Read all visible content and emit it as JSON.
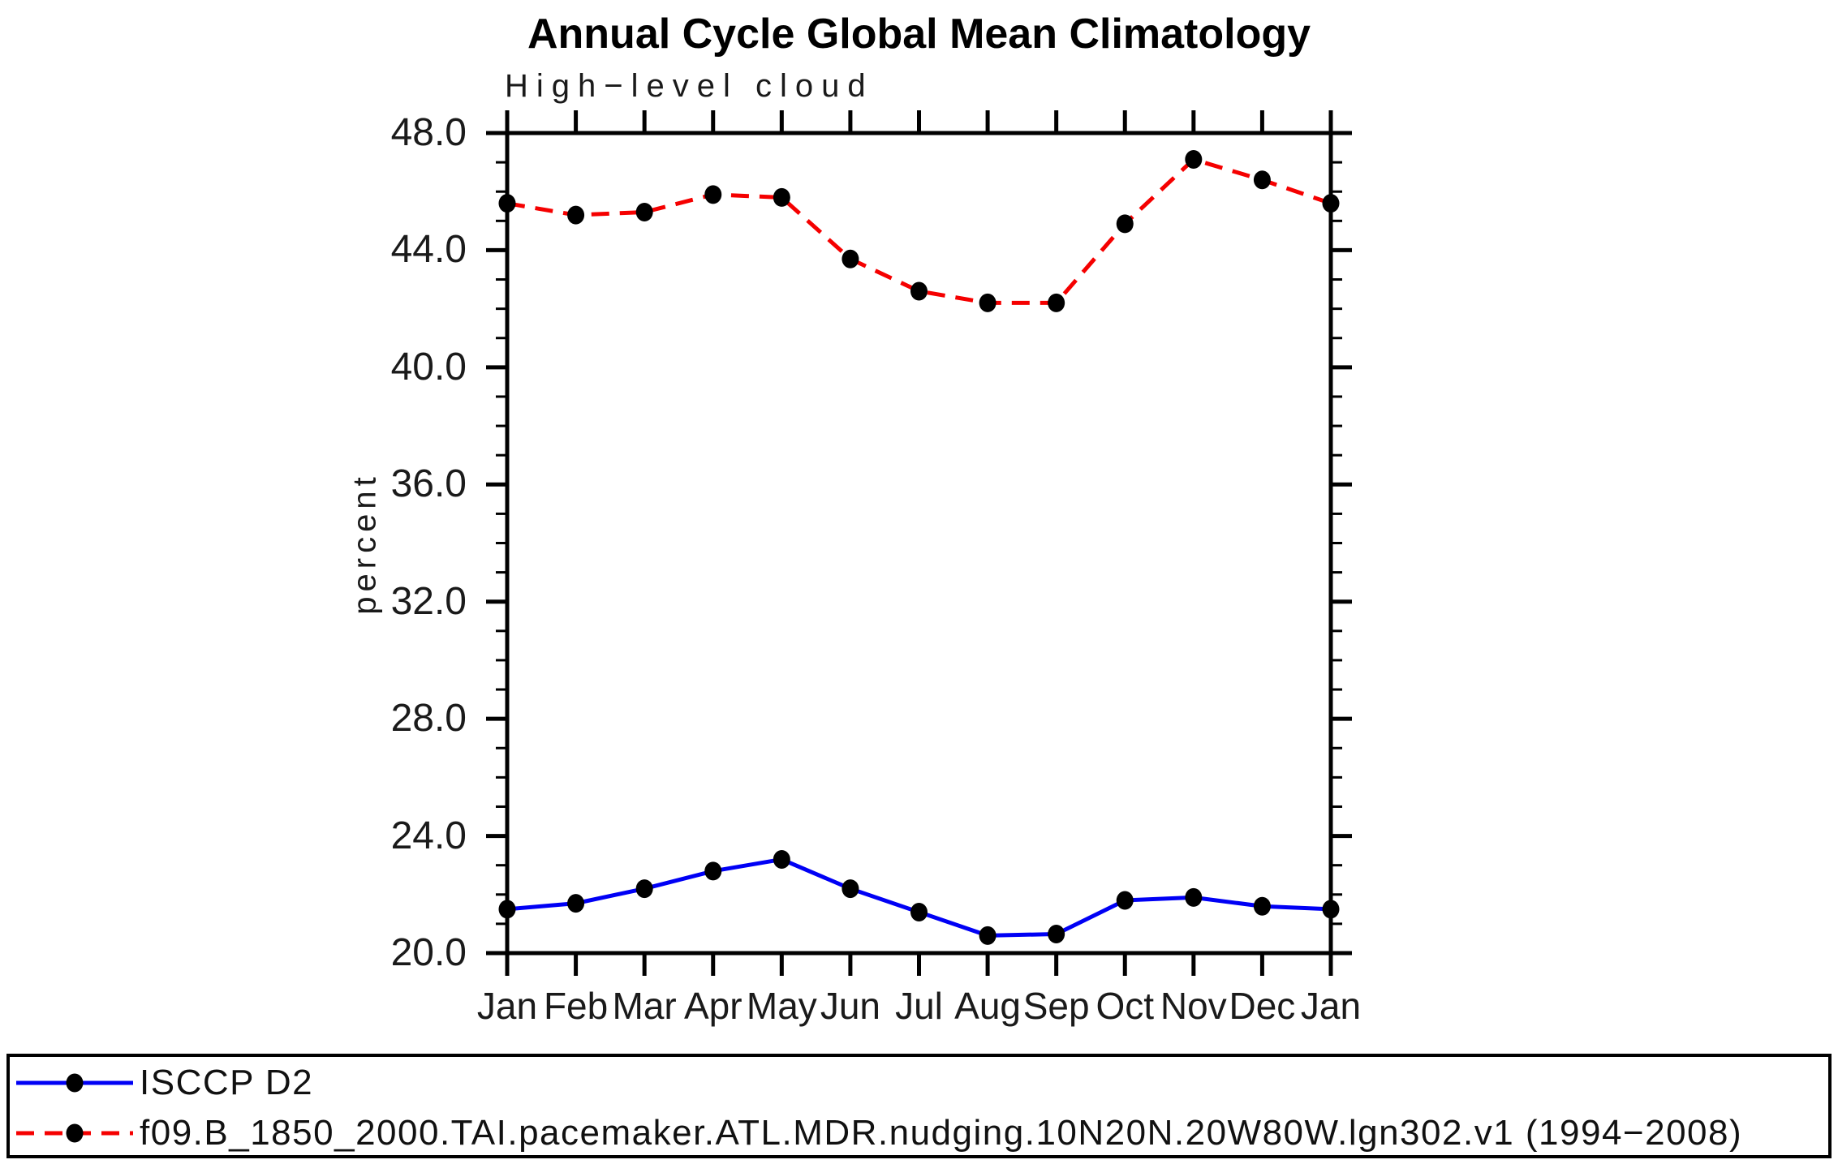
{
  "page": {
    "background": "#ffffff"
  },
  "chart_data": {
    "type": "line",
    "title": "Annual Cycle Global Mean Climatology",
    "subtitle": "High−level cloud",
    "ylabel": "percent",
    "xlabel": "",
    "categories": [
      "Jan",
      "Feb",
      "Mar",
      "Apr",
      "May",
      "Jun",
      "Jul",
      "Aug",
      "Sep",
      "Oct",
      "Nov",
      "Dec",
      "Jan"
    ],
    "ylim": [
      20.0,
      48.0
    ],
    "ytick_major_step": 4.0,
    "ytick_minor_step": 1.0,
    "ytick_labels": [
      "48.0",
      "44.0",
      "40.0",
      "36.0",
      "32.0",
      "28.0",
      "24.0",
      "20.0"
    ],
    "grid": false,
    "legend_position": "bottom",
    "axis_color": "#000000",
    "marker_shape": "filled-circle",
    "series": [
      {
        "name": "ISCCP D2",
        "color": "#0000f5",
        "line_style": "solid",
        "marker_color": "#000000",
        "values": [
          21.5,
          21.7,
          22.2,
          22.8,
          23.2,
          22.2,
          21.4,
          20.6,
          20.65,
          21.8,
          21.9,
          21.6,
          21.5
        ]
      },
      {
        "name": "f09.B_1850_2000.TAI.pacemaker.ATL.MDR.nudging.10N20N.20W80W.lgn302.v1 (1994−2008)",
        "color": "#f50000",
        "line_style": "dashed",
        "marker_color": "#000000",
        "values": [
          45.6,
          45.2,
          45.3,
          45.9,
          45.8,
          43.7,
          42.6,
          42.2,
          42.2,
          44.9,
          47.1,
          46.4,
          45.6
        ]
      }
    ]
  }
}
